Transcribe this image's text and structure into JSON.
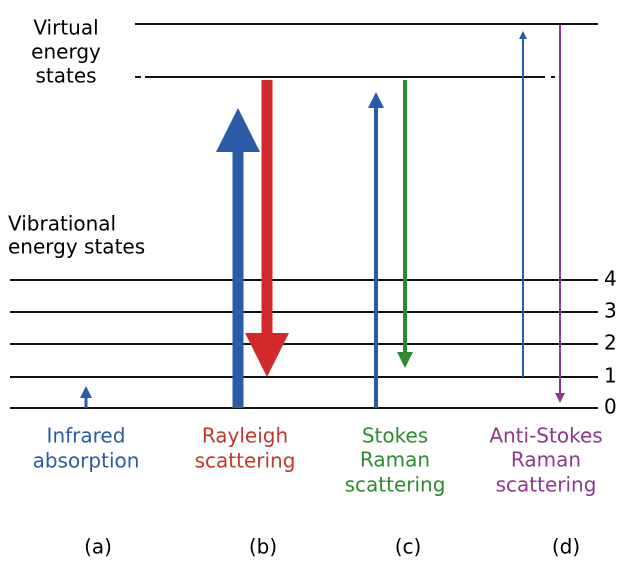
{
  "virtual_label": [
    "Virtual",
    "energy",
    "states"
  ],
  "vibrational_label": [
    "Vibrational",
    "energy states"
  ],
  "levels": [
    "0",
    "1",
    "2",
    "3",
    "4"
  ],
  "processes": [
    {
      "label": [
        "Infrared",
        "absorption"
      ],
      "tag": "(a)"
    },
    {
      "label": [
        "Rayleigh",
        "scattering"
      ],
      "tag": "(b)"
    },
    {
      "label": [
        "Stokes",
        "Raman",
        "scattering"
      ],
      "tag": "(c)"
    },
    {
      "label": [
        "Anti-Stokes",
        "Raman",
        "scattering"
      ],
      "tag": "(d)"
    }
  ]
}
